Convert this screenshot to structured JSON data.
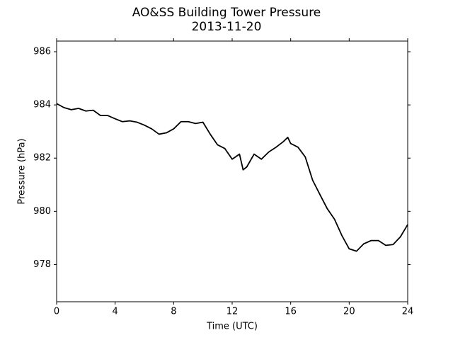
{
  "chart_data": {
    "type": "line",
    "title": "AO&SS Building Tower Pressure",
    "subtitle": "2013-11-20",
    "x_label": "Time (UTC)",
    "y_label": "Pressure (hPa)",
    "x": [
      0,
      0.5,
      1,
      1.5,
      2,
      2.5,
      3,
      3.5,
      4,
      4.5,
      5,
      5.5,
      6,
      6.5,
      7,
      7.5,
      8,
      8.5,
      9,
      9.5,
      10,
      10.5,
      11,
      11.5,
      12,
      12.5,
      12.75,
      13,
      13.5,
      14,
      14.5,
      15,
      15.5,
      15.8,
      16,
      16.5,
      17,
      17.5,
      18,
      18.5,
      19,
      19.5,
      20,
      20.5,
      21,
      21.5,
      22,
      22.5,
      23,
      23.5,
      24
    ],
    "series": [
      {
        "name": "Pressure",
        "color": "#000000",
        "values": [
          984.05,
          983.9,
          983.82,
          983.87,
          983.77,
          983.8,
          983.6,
          983.6,
          983.48,
          983.37,
          983.4,
          983.35,
          983.24,
          983.1,
          982.9,
          982.95,
          983.1,
          983.37,
          983.37,
          983.3,
          983.35,
          982.9,
          982.5,
          982.36,
          981.96,
          982.15,
          981.56,
          981.67,
          982.15,
          981.96,
          982.23,
          982.41,
          982.62,
          982.78,
          982.55,
          982.41,
          982.04,
          981.17,
          980.63,
          980.1,
          979.7,
          979.09,
          978.59,
          978.5,
          978.78,
          978.9,
          978.9,
          978.72,
          978.75,
          979.04,
          979.5
        ]
      }
    ],
    "xlim": [
      0,
      24
    ],
    "xticks": [
      0,
      4,
      8,
      12,
      16,
      20,
      24
    ],
    "ylim": [
      976.6,
      986.4
    ],
    "yticks": [
      978,
      980,
      982,
      984,
      986
    ],
    "grid": false
  }
}
